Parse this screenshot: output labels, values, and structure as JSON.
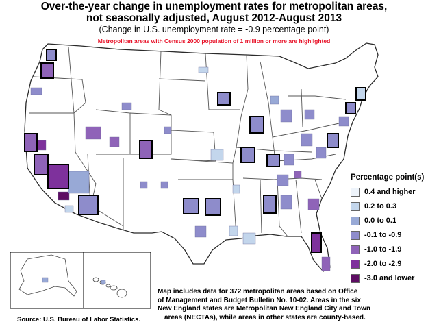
{
  "title": {
    "line1": "Over-the-year change in unemployment rates for metropolitan areas,",
    "line2": "not seasonally adjusted, August 2012-August 2013"
  },
  "subtitle": "(Change in U.S. unemployment rate = -0.9 percentage point)",
  "highlight_note": "Metropolitan areas with Census 2000 population of 1 million or more are highlighted",
  "legend": {
    "title": "Percentage point(s)",
    "items": [
      {
        "label": "0.4 and higher",
        "color": "#eef4fb"
      },
      {
        "label": "0.2 to 0.3",
        "color": "#c3d6ec"
      },
      {
        "label": "0.0 to 0.1",
        "color": "#98a9d6"
      },
      {
        "label": "-0.1 to -0.9",
        "color": "#8e8ccb"
      },
      {
        "label": "-1.0 to -1.9",
        "color": "#8f63b8"
      },
      {
        "label": "-2.0 to -2.9",
        "color": "#7e319c"
      },
      {
        "label": "-3.0 and lower",
        "color": "#5d0d63"
      }
    ]
  },
  "footnote": {
    "line1": "Map includes data for 372 metropolitan areas based on Office",
    "line2": "of Management and Budget Bulletin No. 10-02. Areas in the six",
    "line3": "New England states are Metropolitan New England City and Town",
    "line4": "areas (NECTAs), while areas in other states are county-based."
  },
  "source": "Source:  U.S. Bureau of Labor Statistics.",
  "colors": {
    "state_border": "#2a2a2a",
    "highlight_outline": "#000000",
    "highlight_note": "#e8142a"
  }
}
